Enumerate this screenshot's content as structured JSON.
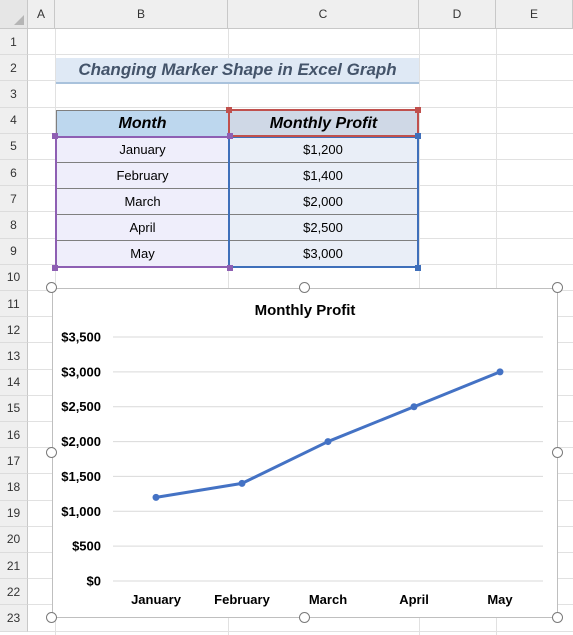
{
  "spreadsheet": {
    "columns": [
      "A",
      "B",
      "C",
      "D",
      "E"
    ],
    "rows": [
      "1",
      "2",
      "3",
      "4",
      "5",
      "6",
      "7",
      "8",
      "9",
      "10",
      "11",
      "12",
      "13",
      "14",
      "15",
      "16",
      "17",
      "18",
      "19",
      "20",
      "21",
      "22",
      "23"
    ]
  },
  "sheet_title": "Changing Marker Shape in Excel Graph",
  "table": {
    "headers": {
      "month": "Month",
      "profit": "Monthly Profit"
    },
    "rows": [
      {
        "month": "January",
        "profit": "$1,200"
      },
      {
        "month": "February",
        "profit": "$1,400"
      },
      {
        "month": "March",
        "profit": "$2,000"
      },
      {
        "month": "April",
        "profit": "$2,500"
      },
      {
        "month": "May",
        "profit": "$3,000"
      }
    ]
  },
  "colors": {
    "line": "#4472c4",
    "gridline": "#d9d9d9",
    "selection_purple": "#8e5fb3",
    "selection_blue": "#3f6fba",
    "selection_red": "#c0504d"
  },
  "chart_data": {
    "type": "line",
    "title": "Monthly Profit",
    "categories": [
      "January",
      "February",
      "March",
      "April",
      "May"
    ],
    "values": [
      1200,
      1400,
      2000,
      2500,
      3000
    ],
    "ylim": [
      0,
      3500
    ],
    "y_tick_values": [
      0,
      500,
      1000,
      1500,
      2000,
      2500,
      3000,
      3500
    ],
    "y_tick_labels": [
      "$0",
      "$500",
      "$1,000",
      "$1,500",
      "$2,000",
      "$2,500",
      "$3,000",
      "$3,500"
    ],
    "grid": true,
    "marker": "circle",
    "legend": "none"
  }
}
